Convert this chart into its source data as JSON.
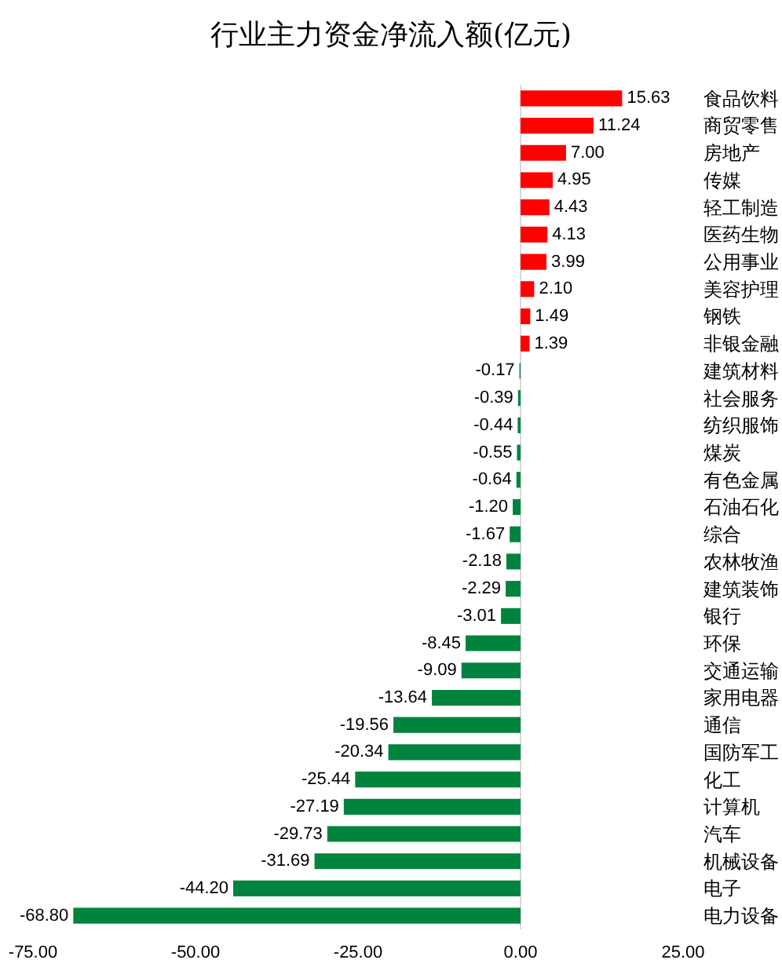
{
  "chart_data": {
    "type": "bar",
    "title": "行业主力资金净流入额(亿元)",
    "orientation": "horizontal",
    "categories": [
      "食品饮料",
      "商贸零售",
      "房地产",
      "传媒",
      "轻工制造",
      "医药生物",
      "公用事业",
      "美容护理",
      "钢铁",
      "非银金融",
      "建筑材料",
      "社会服务",
      "纺织服饰",
      "煤炭",
      "有色金属",
      "石油石化",
      "综合",
      "农林牧渔",
      "建筑装饰",
      "银行",
      "环保",
      "交通运输",
      "家用电器",
      "通信",
      "国防军工",
      "化工",
      "计算机",
      "汽车",
      "机械设备",
      "电子",
      "电力设备"
    ],
    "values": [
      15.63,
      11.24,
      7.0,
      4.95,
      4.43,
      4.13,
      3.99,
      2.1,
      1.49,
      1.39,
      -0.17,
      -0.39,
      -0.44,
      -0.55,
      -0.64,
      -1.2,
      -1.67,
      -2.18,
      -2.29,
      -3.01,
      -8.45,
      -9.09,
      -13.64,
      -19.56,
      -20.34,
      -25.44,
      -27.19,
      -29.73,
      -31.69,
      -44.2,
      -68.8
    ],
    "value_labels": [
      "15.63",
      "11.24",
      "7.00",
      "4.95",
      "4.43",
      "4.13",
      "3.99",
      "2.10",
      "1.49",
      "1.39",
      "-0.17",
      "-0.39",
      "-0.44",
      "-0.55",
      "-0.64",
      "-1.20",
      "-1.67",
      "-2.18",
      "-2.29",
      "-3.01",
      "-8.45",
      "-9.09",
      "-13.64",
      "-19.56",
      "-20.34",
      "-25.44",
      "-27.19",
      "-29.73",
      "-31.69",
      "-44.20",
      "-68.80"
    ],
    "colors": [
      "#ff0000",
      "#ff0000",
      "#ff0000",
      "#ff0000",
      "#ff0000",
      "#ff0000",
      "#ff0000",
      "#ff0000",
      "#ff0000",
      "#ff0000",
      "#00843d",
      "#00843d",
      "#00843d",
      "#00843d",
      "#00843d",
      "#00843d",
      "#00843d",
      "#00843d",
      "#00843d",
      "#00843d",
      "#00843d",
      "#00843d",
      "#00843d",
      "#00843d",
      "#00843d",
      "#00843d",
      "#00843d",
      "#00843d",
      "#00843d",
      "#00843d",
      "#00843d"
    ],
    "xlim": [
      -75,
      25
    ],
    "xticks": [
      {
        "value": -75,
        "label": "-75.00"
      },
      {
        "value": -50,
        "label": "-50.00"
      },
      {
        "value": -25,
        "label": "-25.00"
      },
      {
        "value": 0,
        "label": "0.00"
      },
      {
        "value": 25,
        "label": "25.00"
      }
    ],
    "ref_lines": [
      {
        "axis": "x",
        "value": 0,
        "color": "#d9d9d9"
      }
    ],
    "grid": false
  }
}
